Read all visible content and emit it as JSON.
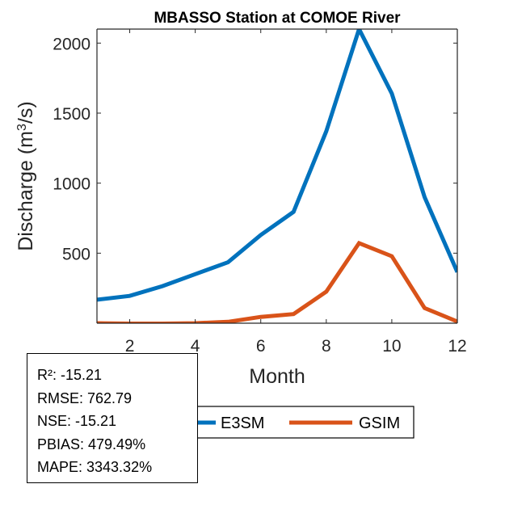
{
  "chart_data": {
    "type": "line",
    "title": "MBASSO  Station at  COMOE  River",
    "xlabel": "Month",
    "ylabel": {
      "main": "Discharge (m",
      "sup": "3",
      "tail": "/s)"
    },
    "xlim": [
      1,
      12
    ],
    "ylim": [
      0,
      2100
    ],
    "xticks": [
      2,
      4,
      6,
      8,
      10,
      12
    ],
    "yticks": [
      500,
      1000,
      1500,
      2000
    ],
    "x": [
      1,
      2,
      3,
      4,
      5,
      6,
      7,
      8,
      9,
      10,
      11,
      12
    ],
    "series": [
      {
        "name": "E3SM",
        "color": "#0072BD",
        "values": [
          168,
          195,
          265,
          350,
          435,
          630,
          795,
          1370,
          2100,
          1640,
          900,
          365
        ]
      },
      {
        "name": "GSIM",
        "color": "#D95319",
        "values": [
          0,
          -3,
          -3,
          0,
          10,
          45,
          65,
          225,
          572,
          478,
          108,
          12
        ]
      }
    ],
    "legend_position": "bottom"
  },
  "stats": {
    "lines": [
      "R²: -15.21",
      "RMSE: 762.79",
      "NSE: -15.21",
      "PBIAS: 479.49%",
      "MAPE: 3343.32%"
    ]
  }
}
